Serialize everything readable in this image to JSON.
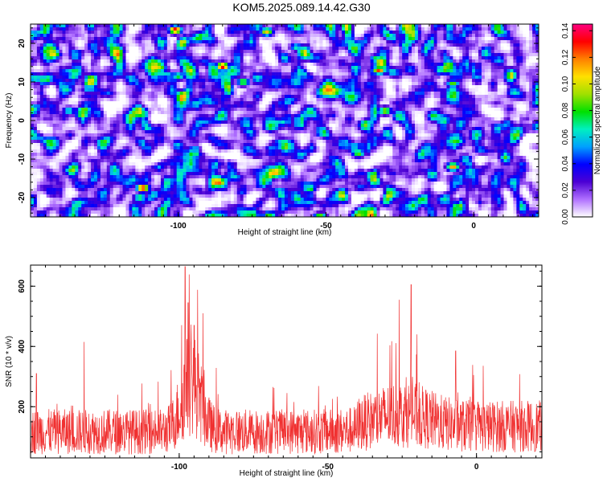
{
  "title": "KOM5.2025.089.14.42.G30",
  "chart_data": [
    {
      "type": "heatmap",
      "xlabel": "Height of straight line (km)",
      "ylabel": "Frequency (Hz)",
      "xlim": [
        -150,
        22
      ],
      "ylim": [
        -25,
        25
      ],
      "xticks": [
        -100,
        -50,
        0
      ],
      "xtick_labels": [
        "-100",
        "-50",
        "0"
      ],
      "yticks": [
        -20,
        -10,
        0,
        10,
        20
      ],
      "ytick_labels": [
        "-20",
        "-10",
        "0",
        "10",
        "20"
      ],
      "colorbar": {
        "label": "Normalized spectral amplitude",
        "range": [
          0,
          0.145
        ],
        "ticks": [
          0,
          0.02,
          0.04,
          0.06,
          0.08,
          0.1,
          0.12,
          0.14
        ],
        "tick_labels": [
          "0.00",
          "0.02",
          "0.04",
          "0.06",
          "0.08",
          "0.10",
          "0.12",
          "0.14"
        ],
        "colors": [
          "#ffffff",
          "#b070ff",
          "#4b00d4",
          "#0000ff",
          "#00a0ff",
          "#00f0c0",
          "#00e000",
          "#a0e000",
          "#ffe000",
          "#ff8000",
          "#ff0000",
          "#ff0080"
        ]
      },
      "hotspots": [
        {
          "x": -101,
          "y": 23.5,
          "v": 0.14
        },
        {
          "x": -112,
          "y": -17.5,
          "v": 0.14
        },
        {
          "x": -85,
          "y": 14,
          "v": 0.14
        },
        {
          "x": -32,
          "y": 13,
          "v": 0.13
        },
        {
          "x": -7,
          "y": -12,
          "v": 0.12
        },
        {
          "x": -70,
          "y": 23,
          "v": 0.11
        },
        {
          "x": -52,
          "y": -25,
          "v": 0.1
        },
        {
          "x": -30,
          "y": 2.5,
          "v": 0.1
        },
        {
          "x": -39,
          "y": -8.5,
          "v": 0.09
        },
        {
          "x": -7,
          "y": 9.5,
          "v": 0.09
        },
        {
          "x": -78,
          "y": 10,
          "v": 0.09
        },
        {
          "x": -113,
          "y": -20,
          "v": 0.08
        },
        {
          "x": -100,
          "y": 11.5,
          "v": 0.08
        },
        {
          "x": -33,
          "y": 16,
          "v": 0.08
        },
        {
          "x": -20,
          "y": 23,
          "v": 0.07
        },
        {
          "x": -60,
          "y": 19,
          "v": 0.07
        },
        {
          "x": -137,
          "y": 2.5,
          "v": 0.07
        },
        {
          "x": -124,
          "y": -5,
          "v": 0.07
        }
      ]
    },
    {
      "type": "line",
      "xlabel": "Height of straight line (km)",
      "ylabel": "SNR (10 * v/v)",
      "xlim": [
        -150,
        22
      ],
      "ylim": [
        30,
        670
      ],
      "xticks": [
        -100,
        -50,
        0
      ],
      "xtick_labels": [
        "-100",
        "-50",
        "0"
      ],
      "yticks": [
        200,
        400,
        600
      ],
      "ytick_labels": [
        "200",
        "400",
        "600"
      ],
      "line_color": "#f03030",
      "baseline_mean": 120,
      "peaks": [
        {
          "x": -98,
          "y": 665
        },
        {
          "x": -97,
          "y": 545
        },
        {
          "x": -92,
          "y": 510
        },
        {
          "x": -95,
          "y": 470
        },
        {
          "x": -22,
          "y": 605
        },
        {
          "x": -26,
          "y": 555
        },
        {
          "x": -132,
          "y": 415
        },
        {
          "x": -20,
          "y": 440
        },
        {
          "x": -7,
          "y": 385
        },
        {
          "x": -148,
          "y": 310
        }
      ]
    }
  ]
}
